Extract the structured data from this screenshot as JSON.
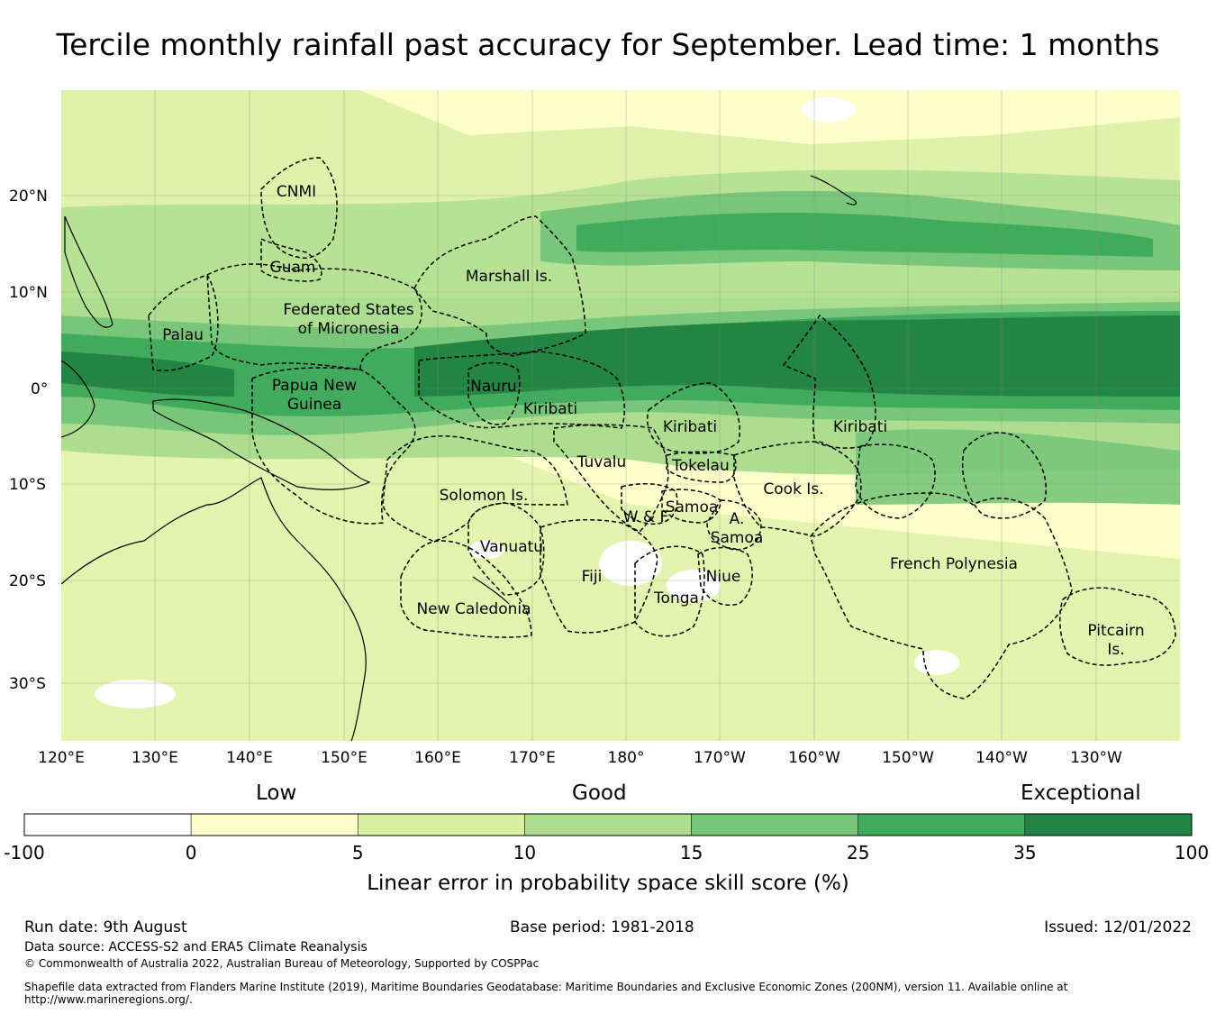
{
  "title": "Tercile monthly rainfall past accuracy for September. Lead time: 1 months",
  "map": {
    "lat_labels": [
      "20°N",
      "10°N",
      "0°",
      "10°S",
      "20°S",
      "30°S"
    ],
    "lon_labels": [
      "120°E",
      "130°E",
      "140°E",
      "150°E",
      "160°E",
      "170°E",
      "180°",
      "170°W",
      "160°W",
      "150°W",
      "140°W",
      "130°W"
    ],
    "regions": [
      {
        "id": "cnmi",
        "label": [
          "CNMI"
        ]
      },
      {
        "id": "guam",
        "label": [
          "Guam"
        ]
      },
      {
        "id": "palau",
        "label": [
          "Palau"
        ]
      },
      {
        "id": "fsm",
        "label": [
          "Federated States",
          "of Micronesia"
        ]
      },
      {
        "id": "marshall",
        "label": [
          "Marshall Is."
        ]
      },
      {
        "id": "png",
        "label": [
          "Papua New",
          "Guinea"
        ]
      },
      {
        "id": "nauru",
        "label": [
          "Nauru"
        ]
      },
      {
        "id": "kiribati-w",
        "label": [
          "Kiribati"
        ]
      },
      {
        "id": "kiribati-c",
        "label": [
          "Kiribati"
        ]
      },
      {
        "id": "kiribati-e",
        "label": [
          "Kiribati"
        ]
      },
      {
        "id": "tuvalu",
        "label": [
          "Tuvalu"
        ]
      },
      {
        "id": "tokelau",
        "label": [
          "Tokelau"
        ]
      },
      {
        "id": "solomon",
        "label": [
          "Solomon Is."
        ]
      },
      {
        "id": "samoa",
        "label": [
          "Samoa"
        ]
      },
      {
        "id": "wf",
        "label": [
          "W & F"
        ]
      },
      {
        "id": "asamoa",
        "label": [
          "A.",
          "Samoa"
        ]
      },
      {
        "id": "cook",
        "label": [
          "Cook Is."
        ]
      },
      {
        "id": "vanuatu",
        "label": [
          "Vanuatu"
        ]
      },
      {
        "id": "fiji",
        "label": [
          "Fiji"
        ]
      },
      {
        "id": "niue",
        "label": [
          "Niue"
        ]
      },
      {
        "id": "tonga",
        "label": [
          "Tonga"
        ]
      },
      {
        "id": "newcal",
        "label": [
          "New Caledonia"
        ]
      },
      {
        "id": "frpoly",
        "label": [
          "French Polynesia"
        ]
      },
      {
        "id": "pitcairn",
        "label": [
          "Pitcairn",
          "Is."
        ]
      }
    ]
  },
  "legend": {
    "categories": [
      "Low",
      "Good",
      "Exceptional"
    ],
    "bins": [
      {
        "from": "-100",
        "to": "0",
        "color": "#ffffff"
      },
      {
        "from": "0",
        "to": "5",
        "color": "#ffffcc"
      },
      {
        "from": "5",
        "to": "10",
        "color": "#d9f0a3"
      },
      {
        "from": "10",
        "to": "15",
        "color": "#addd8e"
      },
      {
        "from": "15",
        "to": "25",
        "color": "#78c679"
      },
      {
        "from": "25",
        "to": "35",
        "color": "#41ab5d"
      },
      {
        "from": "35",
        "to": "100",
        "color": "#238443"
      }
    ],
    "ticks": [
      "-100",
      "0",
      "5",
      "10",
      "15",
      "25",
      "35",
      "100"
    ],
    "axis_label": "Linear error in probability space skill score (%)"
  },
  "footer": {
    "run_date": "Run date: 9th August",
    "base_period": "Base period: 1981-2018",
    "issued": "Issued: 12/01/2022",
    "data_source": "Data source: ACCESS-S2 and ERA5 Climate Reanalysis",
    "copyright": "© Commonwealth of Australia 2022, Australian Bureau of Meteorology, Supported by COSPPac",
    "shapefile_line1": "Shapefile data extracted from Flanders Marine Institute (2019), Maritime Boundaries Geodatabase: Maritime Boundaries and Exclusive Economic Zones (200NM), version 11. Available online at",
    "shapefile_line2": "http://www.marineregions.org/."
  }
}
